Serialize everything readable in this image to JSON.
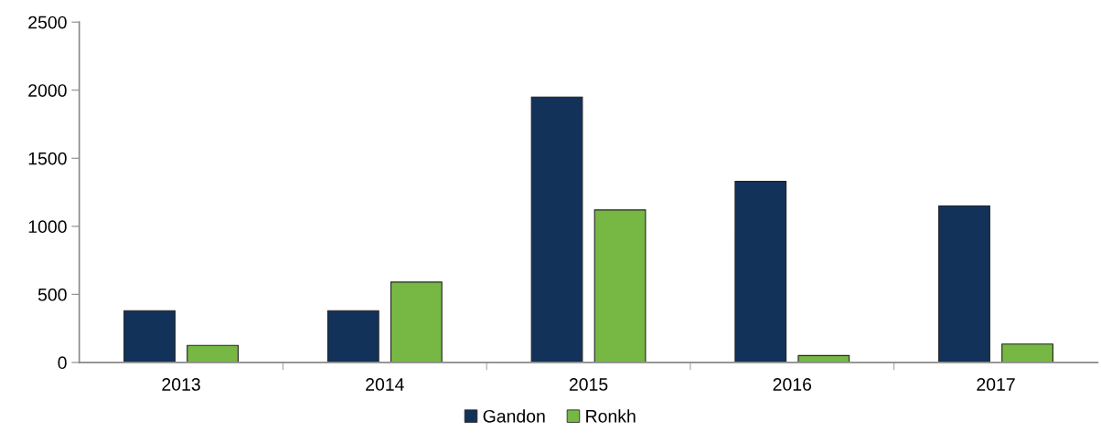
{
  "chart_data": {
    "type": "bar",
    "categories": [
      "2013",
      "2014",
      "2015",
      "2016",
      "2017"
    ],
    "series": [
      {
        "name": "Gandon",
        "color": "#12325a",
        "values": [
          380,
          380,
          1950,
          1330,
          1150
        ]
      },
      {
        "name": "Ronkh",
        "color": "#76b843",
        "values": [
          125,
          590,
          1120,
          50,
          135
        ]
      }
    ],
    "ylim": [
      0,
      2500
    ],
    "yticks": [
      0,
      500,
      1000,
      1500,
      2000,
      2500
    ],
    "grid": false,
    "legend": "bottom"
  }
}
